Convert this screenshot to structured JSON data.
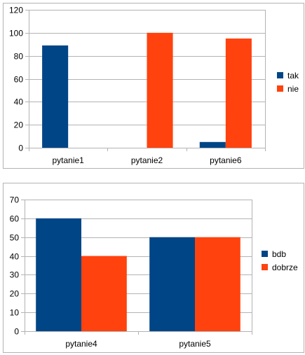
{
  "colors": {
    "series_1": "#004586",
    "series_2": "#ff420e",
    "grid": "#b3b3b3",
    "axis": "#b3b3b3"
  },
  "chart_data": [
    {
      "type": "bar",
      "categories": [
        "pytanie1",
        "pytanie2",
        "pytanie6"
      ],
      "series": [
        {
          "name": "tak",
          "values": [
            89,
            0,
            5
          ]
        },
        {
          "name": "nie",
          "values": [
            0,
            100,
            95
          ]
        }
      ],
      "title": "",
      "xlabel": "",
      "ylabel": "",
      "ylim": [
        0,
        120
      ],
      "yticks": [
        0,
        20,
        40,
        60,
        80,
        100,
        120
      ],
      "grid": true,
      "legend": "right"
    },
    {
      "type": "bar",
      "categories": [
        "pytanie4",
        "pytanie5"
      ],
      "series": [
        {
          "name": "bdb",
          "values": [
            60,
            50
          ]
        },
        {
          "name": "dobrze",
          "values": [
            40,
            50
          ]
        }
      ],
      "title": "",
      "xlabel": "",
      "ylabel": "",
      "ylim": [
        0,
        70
      ],
      "yticks": [
        0,
        10,
        20,
        30,
        40,
        50,
        60,
        70
      ],
      "grid": true,
      "legend": "right"
    }
  ]
}
